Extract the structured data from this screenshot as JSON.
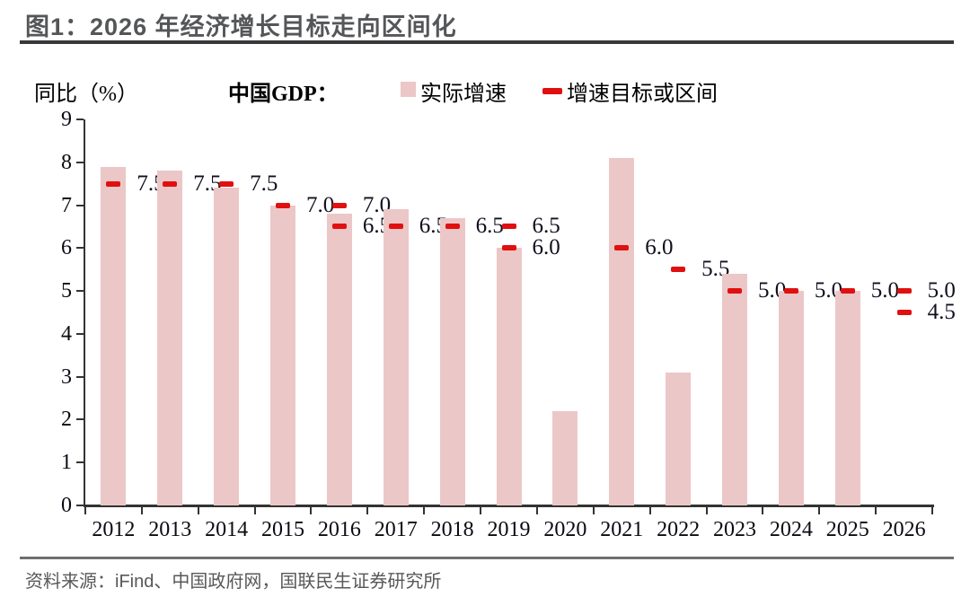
{
  "figure": {
    "title": "图1：2026 年经济增长目标走向区间化",
    "source": "资料来源：iFind、中国政府网，国联民生证券研究所"
  },
  "header": {
    "axis_unit_label": "同比（%）",
    "series_prefix": "中国GDP：",
    "legend": [
      {
        "label": "实际增速"
      },
      {
        "label": "增速目标或区间"
      }
    ]
  },
  "chart_data": {
    "type": "bar",
    "title": "图1：2026 年经济增长目标走向区间化",
    "ylabel": "同比（%）",
    "ylim": [
      0,
      9
    ],
    "yticks": [
      0,
      1,
      2,
      3,
      4,
      5,
      6,
      7,
      8,
      9
    ],
    "grid": false,
    "legend_position": "top",
    "axis_color": "#333333",
    "categories": [
      "2012",
      "2013",
      "2014",
      "2015",
      "2016",
      "2017",
      "2018",
      "2019",
      "2020",
      "2021",
      "2022",
      "2023",
      "2024",
      "2025",
      "2026"
    ],
    "series": [
      {
        "name": "实际增速",
        "type": "bar",
        "color": "#ecc7c7",
        "values": [
          7.9,
          7.8,
          7.4,
          7.0,
          6.8,
          6.9,
          6.7,
          6.0,
          2.2,
          8.1,
          3.1,
          5.4,
          5.0,
          5.0,
          null
        ]
      },
      {
        "name": "增速目标或区间",
        "type": "dash",
        "color": "#e11010",
        "values": [
          [
            7.5
          ],
          [
            7.5
          ],
          [
            7.5
          ],
          [
            7.0
          ],
          [
            7.0,
            6.5
          ],
          [
            6.5
          ],
          [
            6.5
          ],
          [
            6.5,
            6.0
          ],
          [],
          [
            6.0
          ],
          [
            5.5
          ],
          [
            5.0
          ],
          [
            5.0
          ],
          [
            5.0
          ],
          [
            5.0,
            4.5
          ]
        ],
        "labels": [
          [
            "7.5"
          ],
          [
            "7.5"
          ],
          [
            "7.5"
          ],
          [
            "7.0"
          ],
          [
            "7.0",
            "6.5"
          ],
          [
            "6.5"
          ],
          [
            "6.5"
          ],
          [
            "6.5",
            "6.0"
          ],
          [],
          [
            "6.0"
          ],
          [
            "5.5"
          ],
          [
            "5.0"
          ],
          [
            "5.0"
          ],
          [
            "5.0"
          ],
          [
            "5.0",
            "4.5"
          ]
        ]
      }
    ]
  }
}
